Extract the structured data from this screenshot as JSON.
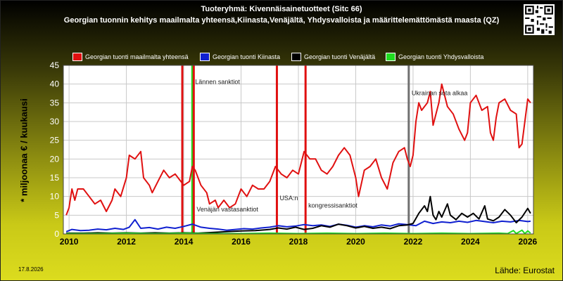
{
  "title_line1": "Tuoteryhmä: Kivennäisainetuotteet (Sitc 66)",
  "title_line2": "Georgian tuonnin kehitys maailmalta yhteensä,Kiinasta,Venäjältä, Yhdysvalloista ja määrittelemättömästä maasta (QZ)",
  "date_stamp": "17.8.2026",
  "source": "Lähde: Eurostat",
  "icons": {
    "qr": "qr-code-icon"
  },
  "colors": {
    "world": "#e01010",
    "china": "#1020d0",
    "russia": "#000000",
    "usa": "#20dd20",
    "plot_bg": "#ffffff",
    "grid": "#c8c8c8"
  },
  "chart_data": {
    "type": "line",
    "ylabel": "* miljoonaa € / kuukausi",
    "ylim": [
      0,
      45
    ],
    "yticks": [
      0,
      5,
      10,
      15,
      20,
      25,
      30,
      35,
      40,
      45
    ],
    "xlim": [
      2009.8,
      2026.2
    ],
    "xticks": [
      2010,
      2012,
      2014,
      2016,
      2018,
      2020,
      2022,
      2024,
      2026
    ],
    "grid": true,
    "legend_position": "top",
    "legend": [
      "Georgian tuonti maailmalta yhteensä",
      "Georgian tuonti Kiinasta",
      "Georgian tuonti Venäjältä",
      "Georgian tuonti Yhdysvalloista"
    ],
    "series": [
      {
        "name": "Georgian tuonti maailmalta yhteensä",
        "color": "#e01010",
        "points": [
          [
            2009.9,
            5
          ],
          [
            2010.0,
            7
          ],
          [
            2010.1,
            12
          ],
          [
            2010.2,
            9
          ],
          [
            2010.3,
            12
          ],
          [
            2010.5,
            12
          ],
          [
            2010.7,
            10
          ],
          [
            2010.9,
            8
          ],
          [
            2011.1,
            9
          ],
          [
            2011.3,
            6
          ],
          [
            2011.5,
            9
          ],
          [
            2011.6,
            12
          ],
          [
            2011.8,
            10
          ],
          [
            2012.0,
            15
          ],
          [
            2012.1,
            21
          ],
          [
            2012.3,
            20
          ],
          [
            2012.5,
            22
          ],
          [
            2012.6,
            15
          ],
          [
            2012.8,
            13
          ],
          [
            2012.9,
            11
          ],
          [
            2013.1,
            14
          ],
          [
            2013.3,
            17
          ],
          [
            2013.5,
            15
          ],
          [
            2013.7,
            16
          ],
          [
            2013.9,
            14
          ],
          [
            2014.0,
            13
          ],
          [
            2014.2,
            14
          ],
          [
            2014.3,
            18
          ],
          [
            2014.4,
            17
          ],
          [
            2014.6,
            13
          ],
          [
            2014.8,
            11
          ],
          [
            2014.9,
            8
          ],
          [
            2015.1,
            9
          ],
          [
            2015.2,
            7
          ],
          [
            2015.4,
            9
          ],
          [
            2015.6,
            7
          ],
          [
            2015.8,
            8
          ],
          [
            2016.0,
            12
          ],
          [
            2016.2,
            10
          ],
          [
            2016.4,
            13
          ],
          [
            2016.6,
            12
          ],
          [
            2016.8,
            12
          ],
          [
            2017.0,
            14
          ],
          [
            2017.2,
            18
          ],
          [
            2017.4,
            16
          ],
          [
            2017.6,
            15
          ],
          [
            2017.8,
            17
          ],
          [
            2018.0,
            16
          ],
          [
            2018.2,
            22
          ],
          [
            2018.4,
            20
          ],
          [
            2018.6,
            20
          ],
          [
            2018.8,
            17
          ],
          [
            2019.0,
            16
          ],
          [
            2019.2,
            18
          ],
          [
            2019.4,
            21
          ],
          [
            2019.6,
            23
          ],
          [
            2019.8,
            21
          ],
          [
            2020.0,
            15
          ],
          [
            2020.1,
            10
          ],
          [
            2020.3,
            17
          ],
          [
            2020.5,
            18
          ],
          [
            2020.7,
            20
          ],
          [
            2020.9,
            15
          ],
          [
            2021.1,
            12
          ],
          [
            2021.3,
            19
          ],
          [
            2021.5,
            22
          ],
          [
            2021.7,
            23
          ],
          [
            2021.8,
            20
          ],
          [
            2021.9,
            18
          ],
          [
            2022.0,
            21
          ],
          [
            2022.1,
            30
          ],
          [
            2022.2,
            35
          ],
          [
            2022.3,
            33
          ],
          [
            2022.5,
            35
          ],
          [
            2022.6,
            38
          ],
          [
            2022.7,
            29
          ],
          [
            2022.8,
            32
          ],
          [
            2022.9,
            35
          ],
          [
            2023.0,
            40
          ],
          [
            2023.2,
            34
          ],
          [
            2023.4,
            32
          ],
          [
            2023.6,
            28
          ],
          [
            2023.8,
            25
          ],
          [
            2023.9,
            27
          ],
          [
            2024.0,
            35
          ],
          [
            2024.2,
            37
          ],
          [
            2024.4,
            33
          ],
          [
            2024.6,
            34
          ],
          [
            2024.7,
            27
          ],
          [
            2024.8,
            25
          ],
          [
            2024.9,
            31
          ],
          [
            2025.0,
            35
          ],
          [
            2025.2,
            36
          ],
          [
            2025.4,
            33
          ],
          [
            2025.6,
            32
          ],
          [
            2025.7,
            23
          ],
          [
            2025.8,
            24
          ],
          [
            2025.9,
            30
          ],
          [
            2026.0,
            36
          ],
          [
            2026.1,
            35
          ]
        ]
      },
      {
        "name": "Georgian tuonti Kiinasta",
        "color": "#1020d0",
        "points": [
          [
            2009.9,
            0.6
          ],
          [
            2010.1,
            1.2
          ],
          [
            2010.4,
            0.9
          ],
          [
            2010.7,
            1.0
          ],
          [
            2011.0,
            1.3
          ],
          [
            2011.3,
            1.1
          ],
          [
            2011.6,
            1.5
          ],
          [
            2011.9,
            1.2
          ],
          [
            2012.1,
            1.8
          ],
          [
            2012.3,
            3.8
          ],
          [
            2012.5,
            1.5
          ],
          [
            2012.8,
            1.7
          ],
          [
            2013.1,
            1.3
          ],
          [
            2013.4,
            1.8
          ],
          [
            2013.7,
            1.5
          ],
          [
            2014.0,
            2.0
          ],
          [
            2014.3,
            2.6
          ],
          [
            2014.6,
            1.8
          ],
          [
            2014.9,
            1.5
          ],
          [
            2015.2,
            1.3
          ],
          [
            2015.5,
            1.0
          ],
          [
            2015.8,
            1.2
          ],
          [
            2016.1,
            1.4
          ],
          [
            2016.4,
            1.3
          ],
          [
            2016.7,
            1.6
          ],
          [
            2017.0,
            1.8
          ],
          [
            2017.3,
            2.2
          ],
          [
            2017.6,
            1.9
          ],
          [
            2017.9,
            2.1
          ],
          [
            2018.2,
            2.5
          ],
          [
            2018.5,
            2.2
          ],
          [
            2018.8,
            2.4
          ],
          [
            2019.1,
            2.0
          ],
          [
            2019.4,
            2.6
          ],
          [
            2019.7,
            2.3
          ],
          [
            2020.0,
            1.8
          ],
          [
            2020.3,
            2.2
          ],
          [
            2020.6,
            1.9
          ],
          [
            2020.9,
            2.4
          ],
          [
            2021.2,
            2.1
          ],
          [
            2021.5,
            2.7
          ],
          [
            2021.8,
            2.5
          ],
          [
            2022.1,
            2.2
          ],
          [
            2022.4,
            3.4
          ],
          [
            2022.7,
            2.8
          ],
          [
            2023.0,
            3.2
          ],
          [
            2023.3,
            3.0
          ],
          [
            2023.6,
            3.4
          ],
          [
            2023.9,
            3.1
          ],
          [
            2024.2,
            3.6
          ],
          [
            2024.5,
            3.3
          ],
          [
            2024.8,
            3.0
          ],
          [
            2025.1,
            3.4
          ],
          [
            2025.4,
            3.2
          ],
          [
            2025.7,
            3.6
          ],
          [
            2026.0,
            3.3
          ],
          [
            2026.1,
            3.4
          ]
        ]
      },
      {
        "name": "Georgian tuonti Venäjältä",
        "color": "#000000",
        "points": [
          [
            2009.9,
            0.2
          ],
          [
            2010.5,
            0.2
          ],
          [
            2011.0,
            0.3
          ],
          [
            2011.5,
            0.2
          ],
          [
            2012.0,
            0.3
          ],
          [
            2012.5,
            0.2
          ],
          [
            2013.0,
            0.3
          ],
          [
            2013.5,
            0.2
          ],
          [
            2014.0,
            0.3
          ],
          [
            2014.5,
            0.2
          ],
          [
            2015.0,
            0.4
          ],
          [
            2015.5,
            0.6
          ],
          [
            2016.0,
            0.8
          ],
          [
            2016.5,
            0.9
          ],
          [
            2017.0,
            1.2
          ],
          [
            2017.3,
            1.6
          ],
          [
            2017.6,
            1.3
          ],
          [
            2017.9,
            1.8
          ],
          [
            2018.2,
            1.2
          ],
          [
            2018.5,
            1.5
          ],
          [
            2018.8,
            2.2
          ],
          [
            2019.1,
            1.8
          ],
          [
            2019.4,
            2.6
          ],
          [
            2019.7,
            2.2
          ],
          [
            2020.0,
            1.6
          ],
          [
            2020.3,
            2.0
          ],
          [
            2020.6,
            1.5
          ],
          [
            2020.9,
            1.8
          ],
          [
            2021.2,
            1.4
          ],
          [
            2021.5,
            2.2
          ],
          [
            2021.8,
            2.4
          ],
          [
            2022.0,
            2.8
          ],
          [
            2022.2,
            5.5
          ],
          [
            2022.4,
            7.5
          ],
          [
            2022.5,
            6.0
          ],
          [
            2022.6,
            10.0
          ],
          [
            2022.7,
            5.0
          ],
          [
            2022.8,
            3.8
          ],
          [
            2022.9,
            6.0
          ],
          [
            2023.0,
            4.5
          ],
          [
            2023.2,
            8.0
          ],
          [
            2023.3,
            5.0
          ],
          [
            2023.5,
            3.8
          ],
          [
            2023.7,
            5.5
          ],
          [
            2023.9,
            4.5
          ],
          [
            2024.1,
            5.5
          ],
          [
            2024.3,
            4.0
          ],
          [
            2024.5,
            7.5
          ],
          [
            2024.6,
            4.0
          ],
          [
            2024.8,
            3.5
          ],
          [
            2025.0,
            4.5
          ],
          [
            2025.2,
            6.5
          ],
          [
            2025.4,
            5.0
          ],
          [
            2025.6,
            3.0
          ],
          [
            2025.8,
            4.5
          ],
          [
            2026.0,
            6.8
          ],
          [
            2026.1,
            5.5
          ]
        ]
      },
      {
        "name": "Georgian tuonti Yhdysvalloista",
        "color": "#20dd20",
        "points": [
          [
            2009.9,
            0.1
          ],
          [
            2011.0,
            0.1
          ],
          [
            2012.0,
            0.2
          ],
          [
            2013.0,
            0.1
          ],
          [
            2014.0,
            0.2
          ],
          [
            2015.0,
            0.1
          ],
          [
            2016.0,
            0.1
          ],
          [
            2017.0,
            0.2
          ],
          [
            2018.0,
            0.1
          ],
          [
            2019.0,
            0.2
          ],
          [
            2020.0,
            0.1
          ],
          [
            2021.0,
            0.2
          ],
          [
            2022.0,
            0.1
          ],
          [
            2023.0,
            0.2
          ],
          [
            2024.0,
            0.1
          ],
          [
            2025.0,
            0.2
          ],
          [
            2025.3,
            0.1
          ],
          [
            2025.5,
            0.9
          ],
          [
            2025.6,
            0.1
          ],
          [
            2025.8,
            1.0
          ],
          [
            2025.9,
            0.1
          ],
          [
            2026.0,
            0.8
          ],
          [
            2026.1,
            0.2
          ]
        ]
      }
    ],
    "events": [
      {
        "x": 2013.95,
        "color": "#e01010",
        "label": ""
      },
      {
        "x": 2014.3,
        "color": "#20dd20",
        "label": "Lännen sanktiot",
        "label_y": 40
      },
      {
        "x": 2014.35,
        "color": "#e01010",
        "label": "Venäjän vastasanktiot",
        "label_y": 6
      },
      {
        "x": 2017.25,
        "color": "#e01010",
        "label": "USA:n",
        "label_y": 9
      },
      {
        "x": 2018.25,
        "color": "#e01010",
        "label": "kongressisanktiot",
        "label_y": 7
      },
      {
        "x": 2021.85,
        "color": "#707070",
        "label": "Ukrainan sota alkaa",
        "label_y": 37
      }
    ]
  }
}
